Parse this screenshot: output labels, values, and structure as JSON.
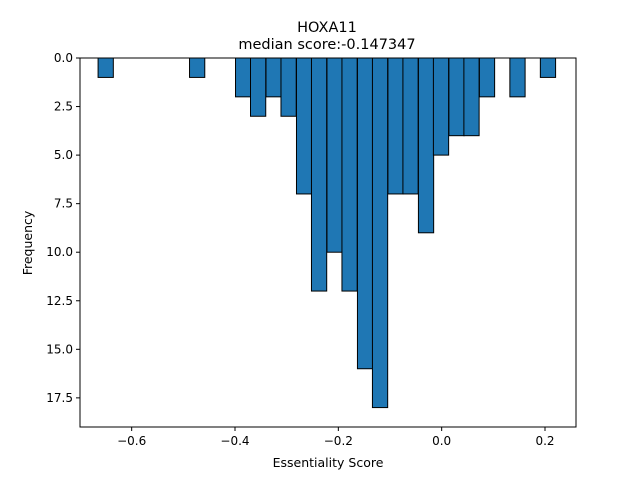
{
  "chart_data": {
    "type": "bar",
    "title": "HOXA11",
    "subtitle": "median score:-0.147347",
    "xlabel": "Essentiality Score",
    "ylabel": "Frequency",
    "xlim": [
      -0.7,
      0.26
    ],
    "ylim": [
      0,
      19
    ],
    "y_inverted": true,
    "grid": false,
    "bar_color": "#1f77b4",
    "edge_color": "#000000",
    "bin_width": 0.0295,
    "bins": [
      {
        "x0": -0.665,
        "count": 1
      },
      {
        "x0": -0.488,
        "count": 1
      },
      {
        "x0": -0.399,
        "count": 2
      },
      {
        "x0": -0.37,
        "count": 3
      },
      {
        "x0": -0.34,
        "count": 2
      },
      {
        "x0": -0.311,
        "count": 3
      },
      {
        "x0": -0.281,
        "count": 7
      },
      {
        "x0": -0.252,
        "count": 12
      },
      {
        "x0": -0.222,
        "count": 10
      },
      {
        "x0": -0.193,
        "count": 12
      },
      {
        "x0": -0.163,
        "count": 16
      },
      {
        "x0": -0.134,
        "count": 18
      },
      {
        "x0": -0.104,
        "count": 7
      },
      {
        "x0": -0.075,
        "count": 7
      },
      {
        "x0": -0.045,
        "count": 9
      },
      {
        "x0": -0.016,
        "count": 5
      },
      {
        "x0": 0.014,
        "count": 4
      },
      {
        "x0": 0.043,
        "count": 4
      },
      {
        "x0": 0.073,
        "count": 2
      },
      {
        "x0": 0.132,
        "count": 2
      },
      {
        "x0": 0.191,
        "count": 1
      }
    ],
    "x_ticks": [
      -0.6,
      -0.4,
      -0.2,
      0.0,
      0.2
    ],
    "x_tick_labels": [
      "−0.6",
      "−0.4",
      "−0.2",
      "0.0",
      "0.2"
    ],
    "y_ticks": [
      0,
      2.5,
      5,
      7.5,
      10,
      12.5,
      15,
      17.5
    ],
    "y_tick_labels": [
      "0.0",
      "2.5",
      "5.0",
      "7.5",
      "10.0",
      "12.5",
      "15.0",
      "17.5"
    ]
  }
}
